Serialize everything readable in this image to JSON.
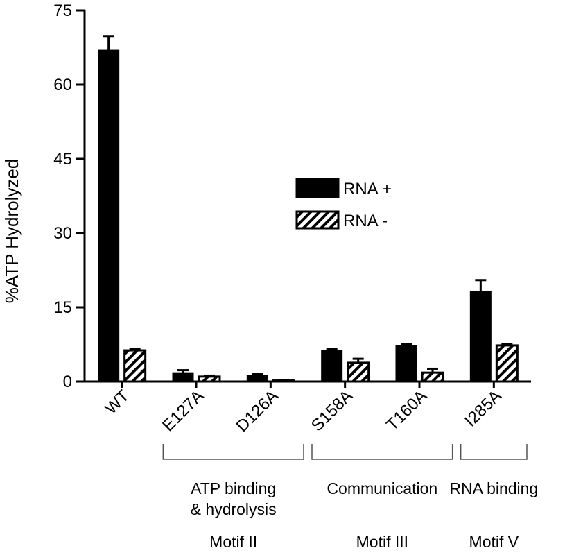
{
  "chart_data": {
    "type": "bar",
    "ylabel": "%ATP Hydrolyzed",
    "ylim": [
      0,
      75
    ],
    "yticks": [
      0,
      15,
      30,
      45,
      60,
      75
    ],
    "categories": [
      "WT",
      "E127A",
      "D126A",
      "S158A",
      "T160A",
      "I285A"
    ],
    "series": [
      {
        "name": "RNA +",
        "pattern": "solid",
        "color": "#000000",
        "values": [
          67,
          1.8,
          1.2,
          6.3,
          7.3,
          18.3
        ],
        "errors": [
          2.7,
          0.5,
          0.4,
          0.3,
          0.3,
          2.2
        ]
      },
      {
        "name": "RNA -",
        "pattern": "hatched",
        "color": "#000000",
        "values": [
          6.3,
          1.0,
          0.2,
          3.8,
          1.8,
          7.3
        ],
        "errors": [
          0.3,
          0.2,
          0.1,
          0.8,
          0.8,
          0.3
        ]
      }
    ],
    "groups": [
      {
        "label_lines": [
          "ATP binding",
          "& hydrolysis"
        ],
        "motif": "Motif II",
        "from": 1,
        "to": 2
      },
      {
        "label_lines": [
          "Communication"
        ],
        "motif": "Motif III",
        "from": 3,
        "to": 4
      },
      {
        "label_lines": [
          "RNA binding"
        ],
        "motif": "Motif V",
        "from": 5,
        "to": 5
      }
    ],
    "legend_position": "center"
  }
}
